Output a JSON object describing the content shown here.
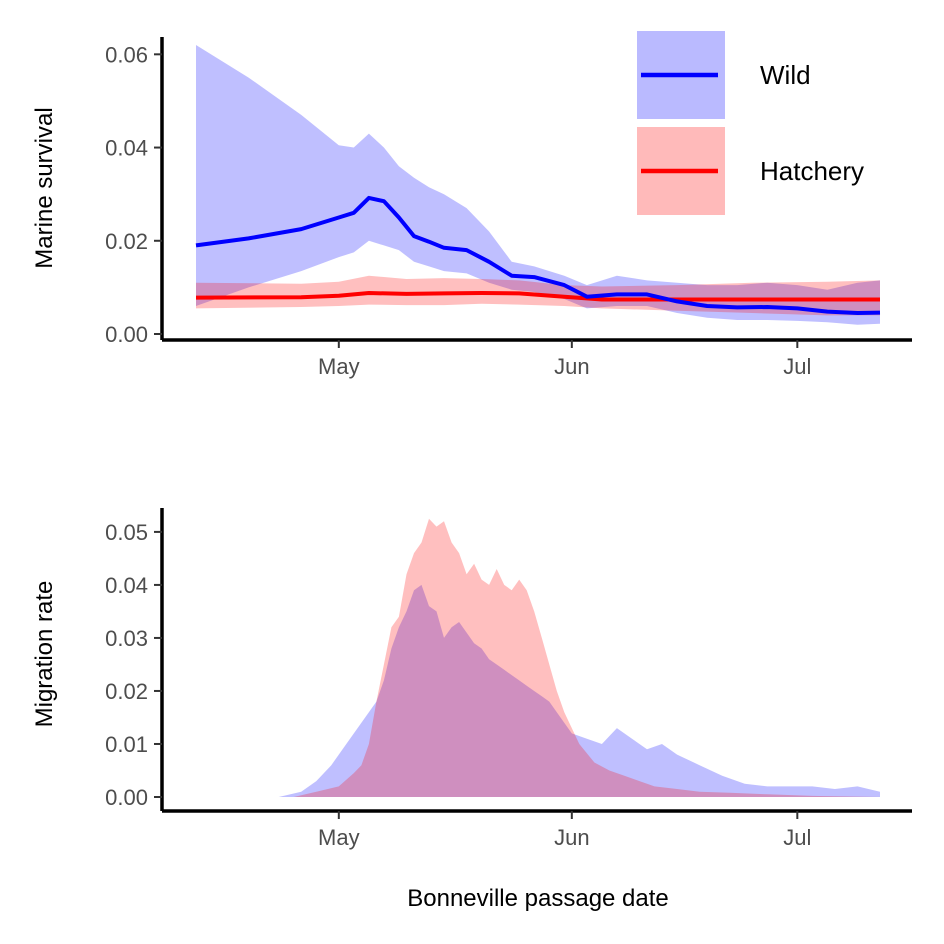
{
  "colors": {
    "wild": "#0000ff",
    "hatchery": "#ff0000",
    "axis": "#000000"
  },
  "chart_data": [
    {
      "type": "line",
      "panel": "top",
      "title": "",
      "xlabel": "",
      "ylabel": "Marine survival",
      "x_type": "date",
      "xlim": [
        "2000-04-12",
        "2000-07-12"
      ],
      "ylim": [
        0,
        0.062
      ],
      "x_ticks": [
        {
          "date": "2000-05-01",
          "label": "May"
        },
        {
          "date": "2000-06-01",
          "label": "Jun"
        },
        {
          "date": "2000-07-01",
          "label": "Jul"
        }
      ],
      "y_ticks": [
        {
          "value": 0,
          "label": "0.00"
        },
        {
          "value": 0.02,
          "label": "0.02"
        },
        {
          "value": 0.04,
          "label": "0.04"
        },
        {
          "value": 0.06,
          "label": "0.06"
        }
      ],
      "grid": false,
      "legend": {
        "placement": "top-right",
        "entries": [
          "Wild",
          "Hatchery"
        ]
      },
      "series": [
        {
          "name": "Wild",
          "color": "#0000ff",
          "x": [
            "2000-04-12",
            "2000-04-19",
            "2000-04-26",
            "2000-05-01",
            "2000-05-03",
            "2000-05-05",
            "2000-05-07",
            "2000-05-09",
            "2000-05-11",
            "2000-05-13",
            "2000-05-15",
            "2000-05-18",
            "2000-05-21",
            "2000-05-24",
            "2000-05-27",
            "2000-05-31",
            "2000-06-03",
            "2000-06-07",
            "2000-06-11",
            "2000-06-15",
            "2000-06-19",
            "2000-06-23",
            "2000-06-27",
            "2000-07-01",
            "2000-07-05",
            "2000-07-09",
            "2000-07-12"
          ],
          "y": [
            0.019,
            0.0205,
            0.0225,
            0.025,
            0.026,
            0.0292,
            0.0285,
            0.025,
            0.021,
            0.0198,
            0.0185,
            0.018,
            0.0155,
            0.0125,
            0.0122,
            0.0105,
            0.008,
            0.0085,
            0.0085,
            0.007,
            0.006,
            0.0057,
            0.0058,
            0.0055,
            0.0048,
            0.0045,
            0.0046
          ],
          "upper": [
            0.062,
            0.055,
            0.047,
            0.0405,
            0.04,
            0.043,
            0.04,
            0.036,
            0.0335,
            0.0315,
            0.03,
            0.027,
            0.022,
            0.0155,
            0.0145,
            0.0125,
            0.0105,
            0.0125,
            0.0115,
            0.011,
            0.0105,
            0.0105,
            0.011,
            0.0105,
            0.0095,
            0.011,
            0.0115
          ],
          "lower": [
            0.006,
            0.01,
            0.0135,
            0.0165,
            0.0175,
            0.02,
            0.019,
            0.018,
            0.0155,
            0.0145,
            0.0135,
            0.013,
            0.011,
            0.0095,
            0.009,
            0.0075,
            0.0055,
            0.006,
            0.006,
            0.0045,
            0.0035,
            0.003,
            0.003,
            0.0028,
            0.0025,
            0.002,
            0.0022
          ]
        },
        {
          "name": "Hatchery",
          "color": "#ff0000",
          "x": [
            "2000-04-12",
            "2000-04-26",
            "2000-05-01",
            "2000-05-05",
            "2000-05-10",
            "2000-05-15",
            "2000-05-20",
            "2000-05-25",
            "2000-05-31",
            "2000-06-05",
            "2000-06-15",
            "2000-06-25",
            "2000-07-05",
            "2000-07-12"
          ],
          "y": [
            0.0078,
            0.0079,
            0.0082,
            0.0088,
            0.0086,
            0.0087,
            0.0088,
            0.0087,
            0.008,
            0.0074,
            0.0074,
            0.0074,
            0.0074,
            0.0074
          ],
          "upper": [
            0.011,
            0.0108,
            0.0112,
            0.0125,
            0.0118,
            0.012,
            0.0118,
            0.0115,
            0.0105,
            0.0102,
            0.0105,
            0.011,
            0.0112,
            0.0115
          ],
          "lower": [
            0.0055,
            0.0058,
            0.006,
            0.0063,
            0.0062,
            0.0062,
            0.0065,
            0.0063,
            0.006,
            0.0055,
            0.005,
            0.0045,
            0.004,
            0.004
          ]
        }
      ]
    },
    {
      "type": "area",
      "panel": "bottom",
      "title": "",
      "xlabel": "Bonneville passage date",
      "ylabel": "Migration rate",
      "x_type": "date",
      "xlim": [
        "2000-04-12",
        "2000-07-12"
      ],
      "ylim": [
        0,
        0.053
      ],
      "x_ticks": [
        {
          "date": "2000-05-01",
          "label": "May"
        },
        {
          "date": "2000-06-01",
          "label": "Jun"
        },
        {
          "date": "2000-07-01",
          "label": "Jul"
        }
      ],
      "y_ticks": [
        {
          "value": 0,
          "label": "0.00"
        },
        {
          "value": 0.01,
          "label": "0.01"
        },
        {
          "value": 0.02,
          "label": "0.02"
        },
        {
          "value": 0.03,
          "label": "0.03"
        },
        {
          "value": 0.04,
          "label": "0.04"
        },
        {
          "value": 0.05,
          "label": "0.05"
        }
      ],
      "grid": false,
      "series": [
        {
          "name": "Wild",
          "color": "#0000ff",
          "x": [
            "2000-04-23",
            "2000-04-26",
            "2000-04-28",
            "2000-04-30",
            "2000-05-02",
            "2000-05-04",
            "2000-05-06",
            "2000-05-07",
            "2000-05-08",
            "2000-05-09",
            "2000-05-10",
            "2000-05-11",
            "2000-05-12",
            "2000-05-13",
            "2000-05-14",
            "2000-05-15",
            "2000-05-16",
            "2000-05-17",
            "2000-05-18",
            "2000-05-19",
            "2000-05-20",
            "2000-05-21",
            "2000-05-22",
            "2000-05-23",
            "2000-05-24",
            "2000-05-25",
            "2000-05-26",
            "2000-05-27",
            "2000-05-28",
            "2000-05-29",
            "2000-05-30",
            "2000-06-01",
            "2000-06-03",
            "2000-06-05",
            "2000-06-07",
            "2000-06-09",
            "2000-06-11",
            "2000-06-13",
            "2000-06-15",
            "2000-06-18",
            "2000-06-21",
            "2000-06-24",
            "2000-06-27",
            "2000-06-30",
            "2000-07-03",
            "2000-07-06",
            "2000-07-09",
            "2000-07-12"
          ],
          "y": [
            0,
            0.001,
            0.003,
            0.006,
            0.01,
            0.014,
            0.018,
            0.022,
            0.028,
            0.032,
            0.035,
            0.039,
            0.04,
            0.036,
            0.035,
            0.03,
            0.032,
            0.033,
            0.031,
            0.029,
            0.028,
            0.026,
            0.025,
            0.024,
            0.023,
            0.022,
            0.021,
            0.02,
            0.019,
            0.018,
            0.016,
            0.012,
            0.011,
            0.01,
            0.013,
            0.011,
            0.009,
            0.01,
            0.008,
            0.006,
            0.004,
            0.0025,
            0.002,
            0.002,
            0.002,
            0.0015,
            0.002,
            0.001
          ]
        },
        {
          "name": "Hatchery",
          "color": "#ff0000",
          "x": [
            "2000-04-25",
            "2000-04-28",
            "2000-05-01",
            "2000-05-03",
            "2000-05-04",
            "2000-05-05",
            "2000-05-06",
            "2000-05-07",
            "2000-05-08",
            "2000-05-09",
            "2000-05-10",
            "2000-05-11",
            "2000-05-12",
            "2000-05-13",
            "2000-05-14",
            "2000-05-15",
            "2000-05-16",
            "2000-05-17",
            "2000-05-18",
            "2000-05-19",
            "2000-05-20",
            "2000-05-21",
            "2000-05-22",
            "2000-05-23",
            "2000-05-24",
            "2000-05-25",
            "2000-05-26",
            "2000-05-27",
            "2000-05-28",
            "2000-05-29",
            "2000-05-30",
            "2000-05-31",
            "2000-06-02",
            "2000-06-04",
            "2000-06-06",
            "2000-06-08",
            "2000-06-10",
            "2000-06-12",
            "2000-06-15",
            "2000-06-18",
            "2000-06-22",
            "2000-06-27",
            "2000-07-03",
            "2000-07-12"
          ],
          "y": [
            0,
            0.001,
            0.002,
            0.0045,
            0.006,
            0.01,
            0.018,
            0.025,
            0.032,
            0.034,
            0.042,
            0.046,
            0.048,
            0.0525,
            0.051,
            0.052,
            0.048,
            0.046,
            0.042,
            0.044,
            0.041,
            0.04,
            0.043,
            0.04,
            0.039,
            0.041,
            0.039,
            0.035,
            0.03,
            0.025,
            0.02,
            0.016,
            0.01,
            0.0065,
            0.005,
            0.004,
            0.003,
            0.002,
            0.0015,
            0.001,
            0.0008,
            0.0005,
            0.0002,
            0
          ]
        }
      ]
    }
  ]
}
